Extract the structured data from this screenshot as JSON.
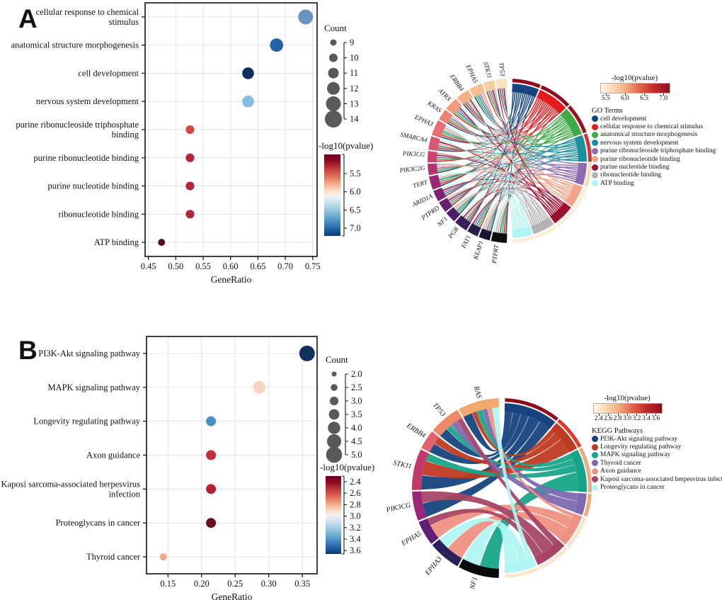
{
  "figure": {
    "panel_a_label": "A",
    "panel_b_label": "B"
  },
  "chart_data": [
    {
      "id": "dotplot_a",
      "type": "scatter",
      "panel": "A",
      "xlabel": "GeneRatio",
      "xlim": [
        0.444,
        0.758
      ],
      "xticks": [
        "0.45",
        "0.50",
        "0.55",
        "0.60",
        "0.65",
        "0.70",
        "0.75"
      ],
      "xtick_values": [
        0.45,
        0.5,
        0.55,
        0.6,
        0.65,
        0.7,
        0.75
      ],
      "grid": true,
      "categories": [
        [
          "cellular response to chemical",
          "stimulus"
        ],
        [
          "anatomical structure morphogenesis"
        ],
        [
          "cell development"
        ],
        [
          "nervous system development"
        ],
        [
          "purine ribonucleoside triphosphate",
          "binding"
        ],
        [
          "purine ribonucleotide binding"
        ],
        [
          "purine nucleotide binding"
        ],
        [
          "ribonucleotide binding"
        ],
        [
          "ATP binding"
        ]
      ],
      "gene_ratio": [
        0.737,
        0.684,
        0.632,
        0.632,
        0.526,
        0.526,
        0.526,
        0.526,
        0.474
      ],
      "count": [
        14,
        13,
        12,
        12,
        10,
        10,
        10,
        10,
        9
      ],
      "neg_log10_pvalue": [
        6.7,
        6.9,
        7.1,
        6.4,
        5.6,
        5.5,
        5.5,
        5.5,
        5.2
      ],
      "dot_colors": [
        "#6b93bf",
        "#2563a8",
        "#0e2e5f",
        "#85bcdf",
        "#cc4c44",
        "#b32638",
        "#b32638",
        "#b32638",
        "#5c0e21"
      ],
      "legend": {
        "count_title": "Count",
        "count_values": [
          "9",
          "10",
          "11",
          "12",
          "13",
          "14"
        ],
        "colorbar_title": "-log10(pvalue)",
        "colorbar_ticks": [
          "5.5",
          "6.0",
          "6.5",
          "7.0"
        ]
      }
    },
    {
      "id": "chord_a",
      "type": "chord",
      "panel": "A",
      "legend": {
        "colorbar_title": "-log10(pvalue)",
        "colorbar_ticks": [
          "5.5",
          "6.0",
          "6.5",
          "7.0"
        ],
        "list_title": "GO Terms"
      },
      "genes": [
        {
          "name": "TP53",
          "color": "#f7e2bd"
        },
        {
          "name": "STK11",
          "color": "#f8cf9f"
        },
        {
          "name": "EPHA5",
          "color": "#f6bf90"
        },
        {
          "name": "ERBB4",
          "color": "#f5ae85"
        },
        {
          "name": "ATRX",
          "color": "#f19a7c"
        },
        {
          "name": "KRAS",
          "color": "#ec8374"
        },
        {
          "name": "EPHA3",
          "color": "#e66d70"
        },
        {
          "name": "SMARCA4",
          "color": "#da576f"
        },
        {
          "name": "PIK3CG",
          "color": "#c9446e"
        },
        {
          "name": "PIK3C2G",
          "color": "#b43370"
        },
        {
          "name": "TERT",
          "color": "#9c2673"
        },
        {
          "name": "ARID1A",
          "color": "#812173"
        },
        {
          "name": "PTPRD",
          "color": "#661f72"
        },
        {
          "name": "NF1",
          "color": "#4c1e6b"
        },
        {
          "name": "PGR",
          "color": "#38205d"
        },
        {
          "name": "FAT1",
          "color": "#2a1e49"
        },
        {
          "name": "KEAP1",
          "color": "#1b1631"
        },
        {
          "name": "PTPRT",
          "color": "#0d0d12"
        }
      ],
      "terms": [
        {
          "label": "cell development",
          "color": "#16437e",
          "weight": 12,
          "rim": "#8e0e1e"
        },
        {
          "label": "cellular response to chemical stimulus",
          "color": "#e41a1c",
          "weight": 14,
          "rim": "#8e0e1e"
        },
        {
          "label": "anatomical structure morphogenesis",
          "color": "#3faa47",
          "weight": 13,
          "rim": "#9e1020"
        },
        {
          "label": "nervous system development",
          "color": "#1a8f9e",
          "weight": 12,
          "rim": "#c73a32"
        },
        {
          "label": "purine ribonucleoside triphosphate binding",
          "color": "#8e6bae",
          "weight": 10,
          "rim": "#f5d9b8"
        },
        {
          "label": "purine ribonucleotide binding",
          "color": "#f2a286",
          "weight": 10,
          "rim": "#fbeed8"
        },
        {
          "label": "purine nucleotide binding",
          "color": "#9e1030",
          "weight": 10,
          "rim": "#fbeed8"
        },
        {
          "label": "ribonucleotide binding",
          "color": "#b3b3b3",
          "weight": 10,
          "rim": "#fbeed8"
        },
        {
          "label": "ATP binding",
          "color": "#aff5f1",
          "weight": 9,
          "rim": "#fbeed8"
        }
      ]
    },
    {
      "id": "dotplot_b",
      "type": "scatter",
      "panel": "B",
      "xlabel": "GeneRatio",
      "xlim": [
        0.118,
        0.372
      ],
      "xticks": [
        "0.15",
        "0.20",
        "0.25",
        "0.30",
        "0.35"
      ],
      "xtick_values": [
        0.15,
        0.2,
        0.25,
        0.3,
        0.35
      ],
      "grid": true,
      "categories": [
        [
          "PI3K-Akt signaling pathway"
        ],
        [
          "MAPK signaling pathway"
        ],
        [
          "Longevity regulating pathway"
        ],
        [
          "Axon guidance"
        ],
        [
          "Kaposi sarcoma-associated herpesvirus",
          "infection"
        ],
        [
          "Proteoglycans in cancer"
        ],
        [
          "Thyroid cancer"
        ]
      ],
      "gene_ratio": [
        0.357,
        0.286,
        0.214,
        0.214,
        0.214,
        0.214,
        0.143
      ],
      "count": [
        5,
        4,
        3,
        3,
        3,
        3,
        2
      ],
      "neg_log10_pvalue": [
        3.6,
        2.9,
        3.3,
        2.5,
        2.45,
        2.35,
        2.7
      ],
      "dot_colors": [
        "#12315f",
        "#f8d5c2",
        "#4a90c9",
        "#c2303a",
        "#b2232f",
        "#6b0e22",
        "#f0a988"
      ],
      "legend": {
        "count_title": "Count",
        "count_values": [
          "2.0",
          "2.5",
          "3.0",
          "3.5",
          "4.0",
          "4.5",
          "5.0"
        ],
        "colorbar_title": "-log10(pvalue)",
        "colorbar_ticks": [
          "2.4",
          "2.6",
          "2.8",
          "3.0",
          "3.2",
          "3.4",
          "3.6"
        ]
      }
    },
    {
      "id": "chord_b",
      "type": "chord",
      "panel": "B",
      "legend": {
        "colorbar_title": "-log10(pvalue)",
        "colorbar_ticks": [
          "2.4",
          "2.6",
          "2.8",
          "3.0",
          "3.2",
          "3.4",
          "3.6"
        ],
        "list_title": "KEGG Pathways"
      },
      "genes": [
        {
          "name": "KRAS",
          "color": "#f2a96e"
        },
        {
          "name": "TP53",
          "color": "#ee8968"
        },
        {
          "name": "ERBB4",
          "color": "#e4606c"
        },
        {
          "name": "STK11",
          "color": "#c13a6b"
        },
        {
          "name": "PIK3CG",
          "color": "#9a2776"
        },
        {
          "name": "EPHA5",
          "color": "#5e2076"
        },
        {
          "name": "EPHA3",
          "color": "#28235a"
        },
        {
          "name": "NF1",
          "color": "#0a0a0a"
        }
      ],
      "terms": [
        {
          "label": "PI3K-Akt signaling pathway",
          "color": "#16437e",
          "weight": 5,
          "rim": "#8e0e1e"
        },
        {
          "label": "Longevity regulating pathway",
          "color": "#bf3a21",
          "weight": 3,
          "rim": "#e03a28"
        },
        {
          "label": "MAPK signaling pathway",
          "color": "#17a589",
          "weight": 4,
          "rim": "#f0a878"
        },
        {
          "label": "Thyroid cancer",
          "color": "#7d6bb0",
          "weight": 2,
          "rim": "#f0a878"
        },
        {
          "label": "Axon guidance",
          "color": "#ef9183",
          "weight": 3,
          "rim": "#fae6ce"
        },
        {
          "label": "Kaposi sarcoma-associated herpesvirus infection",
          "color": "#a84465",
          "weight": 3,
          "rim": "#fae6ce"
        },
        {
          "label": "Proteoglycans in cancer",
          "color": "#aff5f1",
          "weight": 3,
          "rim": "#fae6ce"
        }
      ],
      "links": [
        [
          0,
          0,
          1
        ],
        [
          1,
          0,
          1
        ],
        [
          2,
          0,
          1
        ],
        [
          3,
          0,
          1.5
        ],
        [
          4,
          0,
          1.5
        ],
        [
          0,
          1,
          0.5
        ],
        [
          2,
          1,
          0.8
        ],
        [
          3,
          1,
          1.5
        ],
        [
          0,
          2,
          0.6
        ],
        [
          1,
          2,
          0.6
        ],
        [
          3,
          2,
          0.8
        ],
        [
          7,
          2,
          2
        ],
        [
          0,
          3,
          0.5
        ],
        [
          1,
          3,
          0.7
        ],
        [
          0,
          4,
          0.5
        ],
        [
          5,
          4,
          1.5
        ],
        [
          6,
          4,
          1.8
        ],
        [
          1,
          5,
          0.6
        ],
        [
          4,
          5,
          1.2
        ],
        [
          5,
          5,
          0.8
        ],
        [
          0,
          6,
          0.7
        ],
        [
          6,
          6,
          1.2
        ],
        [
          7,
          6,
          1.8
        ]
      ]
    }
  ]
}
